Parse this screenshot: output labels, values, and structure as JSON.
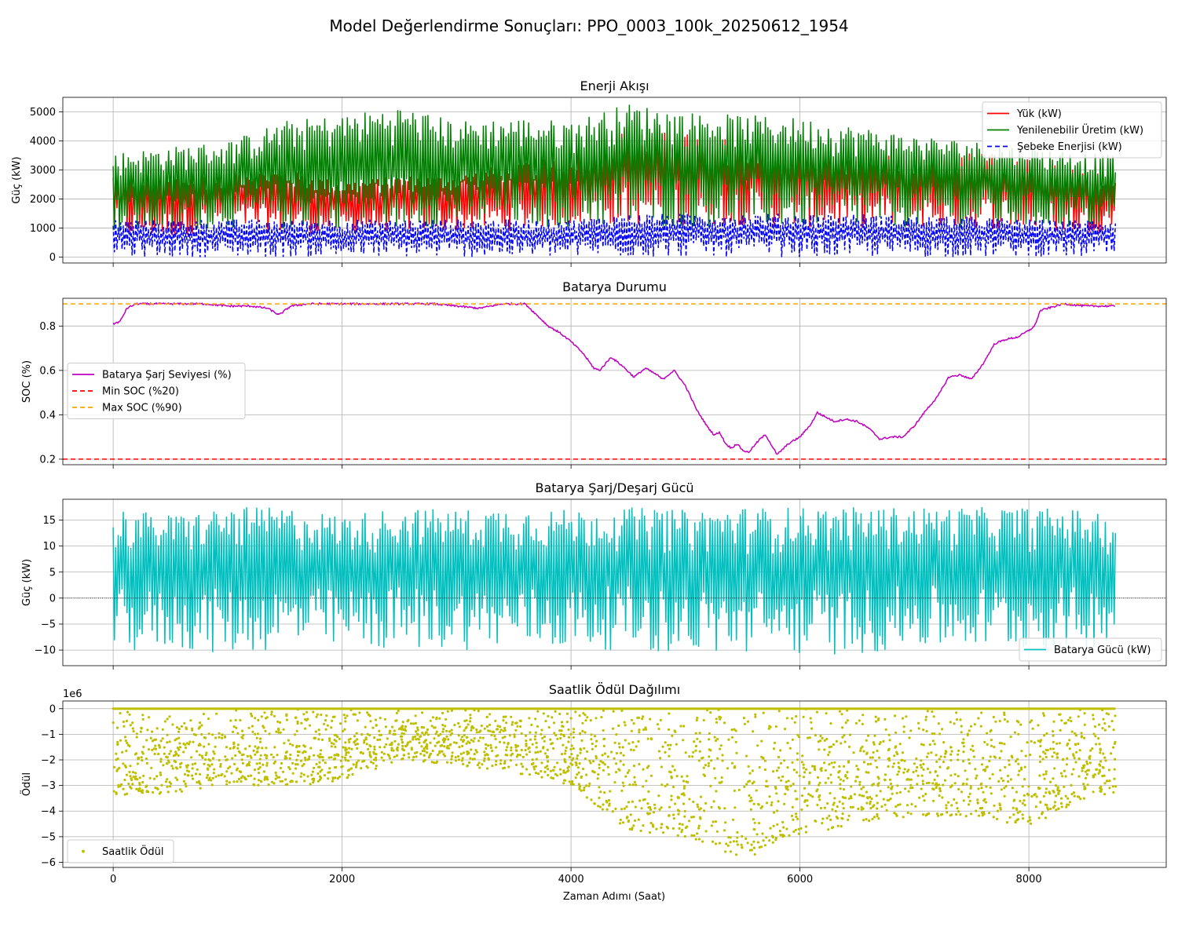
{
  "figure": {
    "title": "Model Değerlendirme Sonuçları: PPO_0003_100k_20250612_1954",
    "xlabel": "Zaman Adımı (Saat)"
  },
  "chart_data": [
    {
      "type": "line",
      "title": "Enerji Akışı",
      "xlabel": "",
      "ylabel": "Güç (kW)",
      "xlim": [
        -440,
        9200
      ],
      "ylim": [
        -200,
        5500
      ],
      "xticks": [
        0,
        2000,
        4000,
        6000,
        8000
      ],
      "yticks": [
        0,
        1000,
        2000,
        3000,
        4000,
        5000
      ],
      "grid": true,
      "legend_position": "top-right",
      "x_range": [
        0,
        8759
      ],
      "series": [
        {
          "name": "Yük (kW)",
          "color": "#ff0000",
          "style": "solid",
          "x": [
            0,
            500,
            1000,
            1500,
            2000,
            2500,
            3000,
            3500,
            4000,
            4500,
            5000,
            5500,
            6000,
            6500,
            7000,
            7500,
            8000,
            8500,
            8759
          ],
          "min": [
            700,
            650,
            1000,
            800,
            800,
            900,
            900,
            900,
            1100,
            1100,
            1100,
            1100,
            1000,
            1000,
            1000,
            1000,
            900,
            800,
            900
          ],
          "max": [
            2900,
            2800,
            3000,
            3000,
            2600,
            2800,
            2800,
            3300,
            3500,
            4400,
            4300,
            4000,
            3900,
            3600,
            3500,
            3600,
            3600,
            3000,
            3000
          ]
        },
        {
          "name": "Yenilenebilir Üretim (kW)",
          "color": "#008000",
          "style": "solid",
          "x": [
            0,
            500,
            1000,
            1500,
            2000,
            2500,
            3000,
            3500,
            4000,
            4500,
            5000,
            5500,
            6000,
            6500,
            7000,
            7500,
            8000,
            8500,
            8759
          ],
          "min": [
            800,
            900,
            1000,
            900,
            1000,
            1000,
            1000,
            1000,
            1000,
            1000,
            1000,
            1000,
            1000,
            1000,
            1000,
            1000,
            1000,
            1000,
            1000
          ],
          "max": [
            3600,
            3800,
            4000,
            4700,
            4900,
            5200,
            4700,
            4800,
            4700,
            5300,
            5000,
            4900,
            4800,
            4500,
            4200,
            4000,
            3800,
            3600,
            3500
          ]
        },
        {
          "name": "Şebeke Enerjisi (kW)",
          "color": "#0000ff",
          "style": "dashed",
          "x": [
            0,
            500,
            1000,
            1500,
            2000,
            2500,
            3000,
            3500,
            4000,
            4500,
            5000,
            5500,
            6000,
            6500,
            7000,
            7500,
            8000,
            8500,
            8759
          ],
          "min": [
            0,
            0,
            0,
            0,
            0,
            0,
            0,
            0,
            0,
            0,
            0,
            0,
            0,
            0,
            0,
            0,
            0,
            0,
            0
          ],
          "max": [
            1300,
            1300,
            1300,
            1300,
            1300,
            1300,
            1300,
            1300,
            1300,
            1500,
            1500,
            1500,
            1500,
            1500,
            1400,
            1400,
            1300,
            1300,
            1300
          ]
        }
      ]
    },
    {
      "type": "line",
      "title": "Batarya Durumu",
      "xlabel": "",
      "ylabel": "SOC (%)",
      "xlim": [
        -440,
        9200
      ],
      "ylim": [
        0.175,
        0.925
      ],
      "xticks": [
        0,
        2000,
        4000,
        6000,
        8000
      ],
      "yticks": [
        0.2,
        0.4,
        0.6,
        0.8
      ],
      "grid": true,
      "legend_position": "center-left",
      "series": [
        {
          "name": "Batarya Şarj Seviyesi (%)",
          "color": "#bf00bf",
          "style": "solid",
          "x": [
            0,
            60,
            120,
            200,
            400,
            600,
            800,
            1000,
            1200,
            1350,
            1450,
            1550,
            1700,
            2000,
            2400,
            2800,
            3000,
            3200,
            3400,
            3600,
            3700,
            3800,
            3900,
            4000,
            4100,
            4200,
            4250,
            4350,
            4450,
            4550,
            4650,
            4750,
            4800,
            4900,
            5000,
            5100,
            5200,
            5250,
            5300,
            5350,
            5400,
            5450,
            5500,
            5550,
            5600,
            5650,
            5700,
            5800,
            5900,
            6000,
            6100,
            6150,
            6300,
            6400,
            6500,
            6600,
            6700,
            6800,
            6900,
            7000,
            7100,
            7200,
            7300,
            7400,
            7500,
            7600,
            7700,
            7800,
            7900,
            8000,
            8050,
            8100,
            8300,
            8500,
            8759
          ],
          "y": [
            0.81,
            0.82,
            0.88,
            0.9,
            0.9,
            0.9,
            0.9,
            0.89,
            0.89,
            0.88,
            0.85,
            0.89,
            0.9,
            0.9,
            0.9,
            0.9,
            0.89,
            0.88,
            0.9,
            0.9,
            0.85,
            0.8,
            0.77,
            0.73,
            0.68,
            0.61,
            0.6,
            0.66,
            0.62,
            0.57,
            0.61,
            0.58,
            0.56,
            0.6,
            0.53,
            0.42,
            0.34,
            0.31,
            0.32,
            0.27,
            0.25,
            0.27,
            0.24,
            0.23,
            0.26,
            0.29,
            0.31,
            0.22,
            0.27,
            0.3,
            0.36,
            0.41,
            0.37,
            0.38,
            0.37,
            0.34,
            0.29,
            0.3,
            0.3,
            0.35,
            0.42,
            0.48,
            0.57,
            0.58,
            0.56,
            0.63,
            0.72,
            0.74,
            0.75,
            0.78,
            0.8,
            0.87,
            0.9,
            0.89,
            0.89
          ]
        },
        {
          "name": "Min SOC (%20)",
          "color": "#ff0000",
          "style": "dashed",
          "y": 0.2
        },
        {
          "name": "Max SOC (%90)",
          "color": "#ffa500",
          "style": "dashed",
          "y": 0.9
        }
      ]
    },
    {
      "type": "line",
      "title": "Batarya Şarj/Deşarj Gücü",
      "xlabel": "",
      "ylabel": "Güç (kW)",
      "xlim": [
        -440,
        9200
      ],
      "ylim": [
        -13,
        19
      ],
      "xticks": [
        0,
        2000,
        4000,
        6000,
        8000
      ],
      "yticks": [
        -10,
        -5,
        0,
        5,
        10,
        15
      ],
      "grid": true,
      "legend_position": "bottom-right",
      "x_range": [
        0,
        8759
      ],
      "series": [
        {
          "name": "Batarya Gücü (kW)",
          "color": "#00bfbf",
          "style": "solid",
          "x": [
            0,
            500,
            1000,
            1500,
            2000,
            2500,
            3000,
            3500,
            4000,
            4500,
            5000,
            5500,
            6000,
            6500,
            7000,
            7500,
            8000,
            8500,
            8759
          ],
          "min": [
            -11,
            -10,
            -11,
            -10,
            -10,
            -10,
            -10,
            -10,
            -10,
            -10,
            -11,
            -11,
            -11,
            -11,
            -10,
            -10,
            -10,
            -10,
            -8
          ],
          "max": [
            17.5,
            16,
            17.5,
            17.5,
            16,
            17.5,
            17,
            17.5,
            17,
            17.5,
            17,
            17.5,
            17.5,
            17.5,
            17.5,
            17.5,
            17.5,
            17,
            15
          ]
        },
        {
          "name": "",
          "color": "#000000",
          "style": "dotted",
          "y": 0
        }
      ]
    },
    {
      "type": "scatter",
      "title": "Saatlik Ödül Dağılımı",
      "xlabel": "Zaman Adımı (Saat)",
      "ylabel": "Ödül",
      "offset_text": "1e6",
      "xlim": [
        -440,
        9200
      ],
      "ylim": [
        -6.2,
        0.3
      ],
      "xticks": [
        0,
        2000,
        4000,
        6000,
        8000
      ],
      "yticks": [
        -6,
        -5,
        -4,
        -3,
        -2,
        -1,
        0
      ],
      "grid": true,
      "legend_position": "bottom-left",
      "x_range": [
        0,
        8759
      ],
      "series": [
        {
          "name": "Saatlik Ödül",
          "color": "#bfbf00",
          "marker": "dot",
          "x": [
            0,
            500,
            1000,
            1500,
            2000,
            2500,
            3000,
            3500,
            4000,
            4500,
            5000,
            5500,
            6000,
            6500,
            7000,
            7500,
            8000,
            8500,
            8759
          ],
          "min": [
            -3.4,
            -3.3,
            -3.0,
            -3.0,
            -2.9,
            -2.0,
            -2.2,
            -2.5,
            -3.0,
            -4.8,
            -5.0,
            -5.9,
            -5.0,
            -4.5,
            -4.2,
            -4.2,
            -4.6,
            -3.5,
            -3.3
          ],
          "max": [
            0,
            0,
            0,
            0,
            0,
            0,
            0,
            0,
            0,
            0,
            0,
            0,
            0,
            0,
            0,
            0,
            0,
            0,
            0
          ]
        }
      ]
    }
  ]
}
